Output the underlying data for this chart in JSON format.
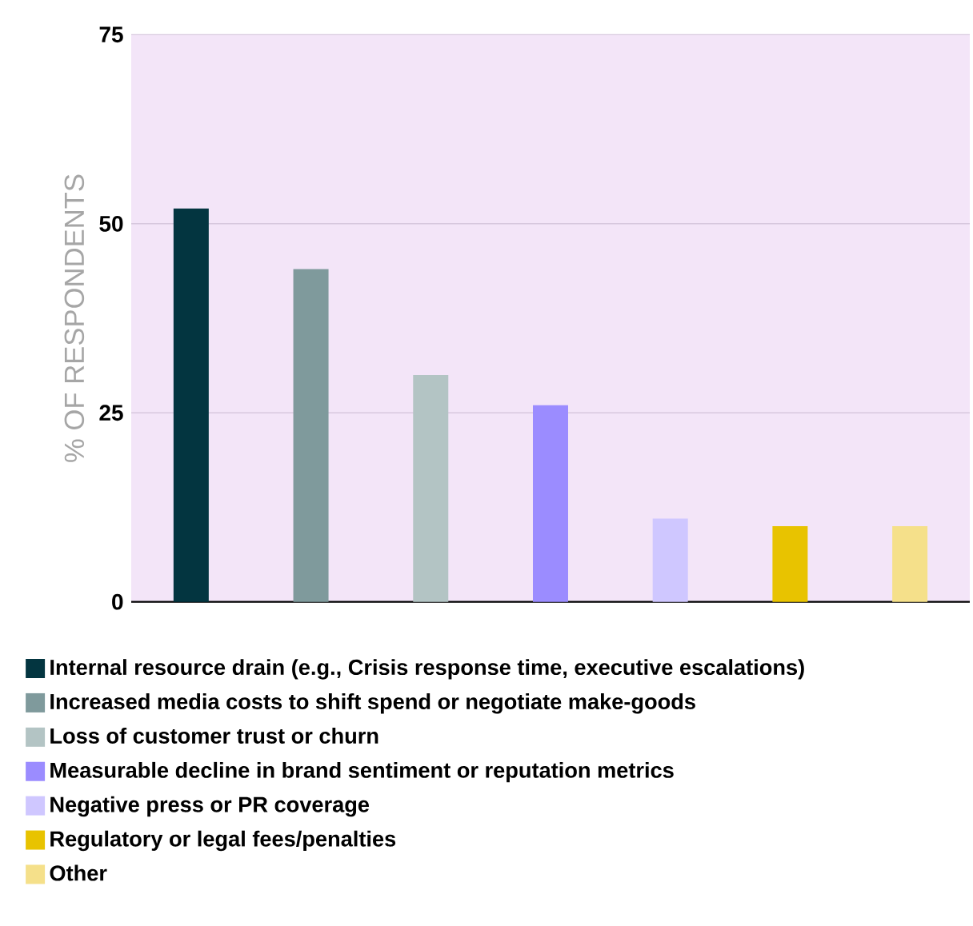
{
  "chart_data": {
    "type": "bar",
    "ylabel": "% OF RESPONDENTS",
    "categories": [
      null,
      null,
      null,
      null,
      null,
      null,
      null
    ],
    "ylim": [
      0,
      75
    ],
    "yticks": [
      0,
      25,
      50,
      75
    ],
    "grid": "y",
    "legend": "bottom",
    "series": [
      {
        "name": "Internal resource drain (e.g., Crisis response time, executive escalations)",
        "color": "#033540",
        "values": [
          52,
          null,
          null,
          null,
          null,
          null,
          null
        ]
      },
      {
        "name": "Increased media costs to shift spend or negotiate make-goods",
        "color": "#7f9a9c",
        "values": [
          null,
          44,
          null,
          null,
          null,
          null,
          null
        ]
      },
      {
        "name": "Loss of customer trust or churn",
        "color": "#b3c4c4",
        "values": [
          null,
          null,
          30,
          null,
          null,
          null,
          null
        ]
      },
      {
        "name": "Measurable decline in brand sentiment or reputation metrics",
        "color": "#9b8cff",
        "values": [
          null,
          null,
          null,
          26,
          null,
          null,
          null
        ]
      },
      {
        "name": "Negative press or PR coverage",
        "color": "#cfc7ff",
        "values": [
          null,
          null,
          null,
          null,
          11,
          null,
          null
        ]
      },
      {
        "name": "Regulatory or legal fees/penalties",
        "color": "#e8c300",
        "values": [
          null,
          null,
          null,
          null,
          null,
          10,
          null
        ]
      },
      {
        "name": "Other",
        "color": "#f5e08a",
        "values": [
          null,
          null,
          null,
          null,
          null,
          null,
          10
        ]
      }
    ]
  }
}
